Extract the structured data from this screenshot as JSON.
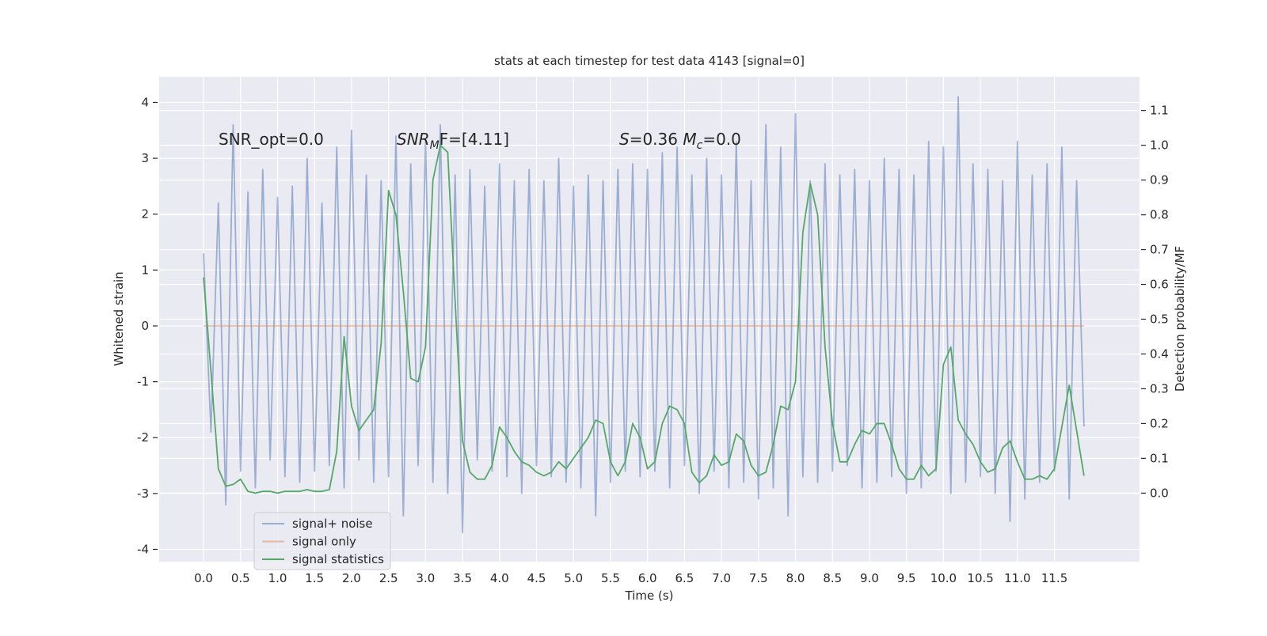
{
  "chart_data": {
    "type": "line",
    "title": "stats at each timestep for test data 4143 [signal=0]",
    "xlabel": "Time (s)",
    "ylabel": "Whitened strain",
    "y2label": "Detection probability/MF",
    "annotations": [
      {
        "parts": [
          "SNR_opt=0.0"
        ]
      },
      {
        "parts": [
          "SNR",
          "M",
          "F=[4.11]"
        ]
      },
      {
        "parts": [
          "S",
          "=0.36   ",
          "M",
          "c",
          "=0.0"
        ]
      }
    ],
    "grid": true,
    "legend": "lower left",
    "xlim": [
      -0.6,
      12.65
    ],
    "ylim": [
      -4.22,
      4.46
    ],
    "y2lim": [
      -0.197,
      1.197
    ],
    "xticks": [
      {
        "value": 0,
        "label": "0.0"
      },
      0.5,
      {
        "value": 1,
        "label": "1.0"
      },
      1.5,
      {
        "value": 2,
        "label": "2.0"
      },
      2.5,
      {
        "value": 3,
        "label": "3.0"
      },
      3.5,
      {
        "value": 4,
        "label": "4.0"
      },
      4.5,
      {
        "value": 5,
        "label": "5.0"
      },
      5.5,
      {
        "value": 6,
        "label": "6.0"
      },
      6.5,
      {
        "value": 7,
        "label": "7.0"
      },
      7.5,
      {
        "value": 8,
        "label": "8.0"
      },
      8.5,
      {
        "value": 9,
        "label": "9.0"
      },
      9.5,
      {
        "value": 10,
        "label": "10.0"
      },
      10.5,
      {
        "value": 11,
        "label": "11.0"
      },
      11.5
    ],
    "yticks": [
      -4,
      -3,
      -2,
      -1,
      0,
      1,
      2,
      3,
      4
    ],
    "y2ticks": [
      {
        "value": 0,
        "label": "0.0"
      },
      0.1,
      0.2,
      0.3,
      0.4,
      0.5,
      0.6,
      0.7,
      0.8,
      0.9,
      {
        "value": 1,
        "label": "1.0"
      },
      1.1
    ],
    "x": [
      0,
      0.1,
      0.2,
      0.3,
      0.4,
      0.5,
      0.6,
      0.7,
      0.8,
      0.9,
      1,
      1.1,
      1.2,
      1.3,
      1.4,
      1.5,
      1.6,
      1.7,
      1.8,
      1.9,
      2,
      2.1,
      2.2,
      2.3,
      2.4,
      2.5,
      2.6,
      2.7,
      2.8,
      2.9,
      3,
      3.1,
      3.2,
      3.3,
      3.4,
      3.5,
      3.6,
      3.7,
      3.8,
      3.9,
      4,
      4.1,
      4.2,
      4.3,
      4.4,
      4.5,
      4.6,
      4.7,
      4.8,
      4.9,
      5,
      5.1,
      5.2,
      5.3,
      5.4,
      5.5,
      5.6,
      5.7,
      5.8,
      5.9,
      6,
      6.1,
      6.2,
      6.3,
      6.4,
      6.5,
      6.6,
      6.7,
      6.8,
      6.9,
      7,
      7.1,
      7.2,
      7.3,
      7.4,
      7.5,
      7.6,
      7.7,
      7.8,
      7.9,
      8,
      8.1,
      8.2,
      8.3,
      8.4,
      8.5,
      8.6,
      8.7,
      8.8,
      8.9,
      9,
      9.1,
      9.2,
      9.3,
      9.4,
      9.5,
      9.6,
      9.7,
      9.8,
      9.9,
      10,
      10.1,
      10.2,
      10.3,
      10.4,
      10.5,
      10.6,
      10.7,
      10.8,
      10.9,
      11,
      11.1,
      11.2,
      11.3,
      11.4,
      11.5,
      11.6,
      11.7,
      11.8,
      11.9
    ],
    "series": [
      {
        "name": "signal+ noise",
        "color": "#4c72b0",
        "opacity": 0.5,
        "axis": "y",
        "values": [
          1.3,
          -1.9,
          2.2,
          -3.2,
          3.6,
          -2.6,
          2.4,
          -2.9,
          2.8,
          -2.4,
          2.3,
          -2.7,
          2.5,
          -2.8,
          3.0,
          -2.6,
          2.2,
          -2.5,
          3.2,
          -2.9,
          3.5,
          -2.4,
          2.7,
          -2.8,
          2.6,
          -2.7,
          3.4,
          -3.4,
          2.9,
          -2.5,
          3.3,
          -2.8,
          3.6,
          -3.0,
          2.7,
          -3.7,
          2.8,
          -2.4,
          2.5,
          -2.6,
          2.9,
          -2.7,
          2.6,
          -3.0,
          2.8,
          -2.5,
          2.6,
          -2.7,
          3.0,
          -2.8,
          2.5,
          -2.9,
          2.7,
          -3.4,
          2.6,
          -2.8,
          2.8,
          -2.6,
          2.9,
          -2.7,
          2.8,
          -2.6,
          3.1,
          -2.9,
          3.2,
          -2.5,
          2.7,
          -3.0,
          3.0,
          -2.6,
          2.7,
          -2.9,
          3.3,
          -2.8,
          2.6,
          -3.1,
          3.6,
          -2.9,
          3.2,
          -3.4,
          3.8,
          -2.7,
          2.6,
          -2.8,
          2.9,
          -2.6,
          2.7,
          -2.5,
          2.8,
          -2.9,
          2.6,
          -2.8,
          3.0,
          -2.7,
          2.8,
          -3.0,
          2.7,
          -2.9,
          3.3,
          -2.6,
          3.2,
          -3.0,
          4.1,
          -2.8,
          2.9,
          -2.7,
          2.8,
          -3.0,
          2.6,
          -3.5,
          3.3,
          -3.1,
          2.7,
          -2.8,
          2.9,
          -2.6,
          3.2,
          -3.1,
          2.6,
          -1.8
        ]
      },
      {
        "name": "signal only",
        "color": "#dd8452",
        "opacity": 0.5,
        "axis": "y",
        "values": [
          0,
          0,
          0,
          0,
          0,
          0,
          0,
          0,
          0,
          0,
          0,
          0,
          0,
          0,
          0,
          0,
          0,
          0,
          0,
          0,
          0,
          0,
          0,
          0,
          0,
          0,
          0,
          0,
          0,
          0,
          0,
          0,
          0,
          0,
          0,
          0,
          0,
          0,
          0,
          0,
          0,
          0,
          0,
          0,
          0,
          0,
          0,
          0,
          0,
          0,
          0,
          0,
          0,
          0,
          0,
          0,
          0,
          0,
          0,
          0,
          0,
          0,
          0,
          0,
          0,
          0,
          0,
          0,
          0,
          0,
          0,
          0,
          0,
          0,
          0,
          0,
          0,
          0,
          0,
          0,
          0,
          0,
          0,
          0,
          0,
          0,
          0,
          0,
          0,
          0,
          0,
          0,
          0,
          0,
          0,
          0,
          0,
          0,
          0,
          0,
          0,
          0,
          0,
          0,
          0,
          0,
          0,
          0,
          0,
          0,
          0,
          0,
          0,
          0,
          0,
          0,
          0,
          0,
          0,
          0
        ]
      },
      {
        "name": "signal statistics",
        "color": "#55a868",
        "opacity": 1,
        "axis": "y2",
        "values": [
          0.62,
          0.35,
          0.07,
          0.02,
          0.025,
          0.04,
          0.005,
          0.0,
          0.005,
          0.005,
          0.0,
          0.005,
          0.005,
          0.005,
          0.01,
          0.005,
          0.005,
          0.01,
          0.12,
          0.45,
          0.25,
          0.18,
          0.21,
          0.24,
          0.43,
          0.87,
          0.8,
          0.58,
          0.33,
          0.32,
          0.42,
          0.9,
          1.0,
          0.98,
          0.55,
          0.15,
          0.06,
          0.04,
          0.04,
          0.08,
          0.19,
          0.16,
          0.12,
          0.09,
          0.08,
          0.06,
          0.05,
          0.06,
          0.09,
          0.07,
          0.1,
          0.13,
          0.16,
          0.21,
          0.2,
          0.09,
          0.05,
          0.09,
          0.2,
          0.16,
          0.07,
          0.09,
          0.2,
          0.25,
          0.24,
          0.2,
          0.06,
          0.03,
          0.05,
          0.11,
          0.08,
          0.09,
          0.17,
          0.15,
          0.08,
          0.05,
          0.06,
          0.14,
          0.25,
          0.24,
          0.32,
          0.75,
          0.89,
          0.8,
          0.42,
          0.2,
          0.09,
          0.09,
          0.14,
          0.18,
          0.17,
          0.2,
          0.2,
          0.14,
          0.07,
          0.04,
          0.04,
          0.08,
          0.05,
          0.07,
          0.37,
          0.42,
          0.21,
          0.17,
          0.14,
          0.09,
          0.06,
          0.07,
          0.13,
          0.15,
          0.09,
          0.04,
          0.04,
          0.05,
          0.04,
          0.07,
          0.19,
          0.31,
          0.18,
          0.05
        ]
      }
    ]
  }
}
